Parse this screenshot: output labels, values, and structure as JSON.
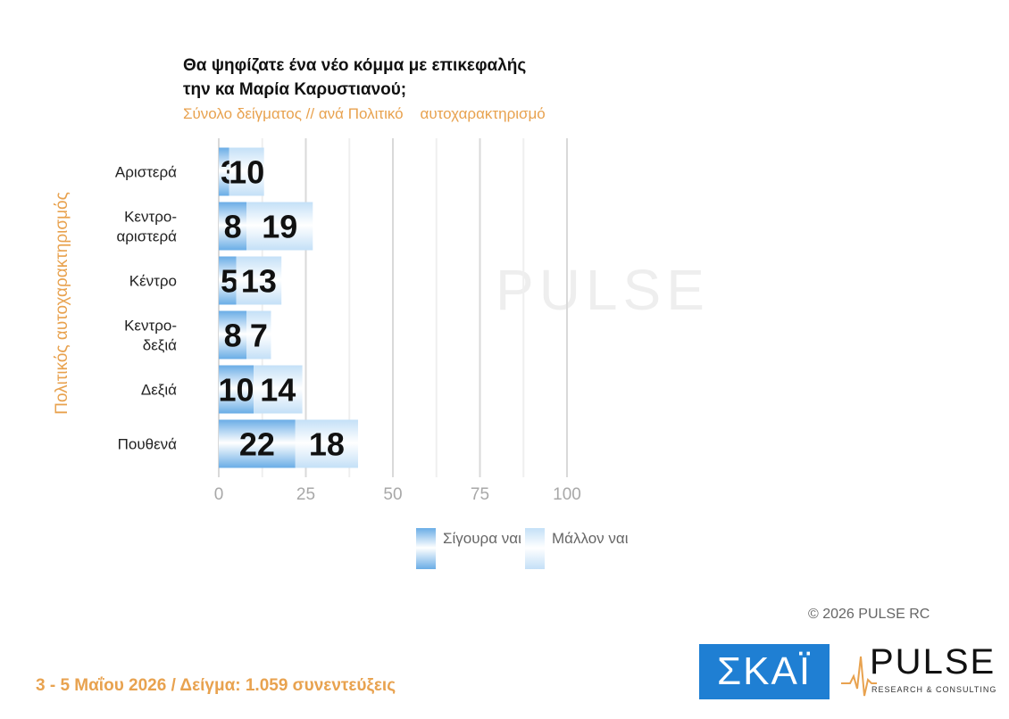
{
  "title_lines": [
    "Θα ψηφίζατε ένα νέο κόμμα με επικεφαλής",
    "την κα Μαρία Καρυστιανού;"
  ],
  "subtitle": "Σύνολο δείγματος // ανά Πολιτικό    αυτοχαρακτηρισμό",
  "chart_data": {
    "type": "bar",
    "orientation": "horizontal",
    "stacked": true,
    "ylabel": "Πολιτικός  αυτοχαρακτηρισμός",
    "categories": [
      [
        "Αριστερά"
      ],
      [
        "Κεντρο-",
        "αριστερά"
      ],
      [
        "Κέντρο"
      ],
      [
        "Κεντρο-",
        "δεξιά"
      ],
      [
        "Δεξιά"
      ],
      [
        "Πουθενά"
      ]
    ],
    "series": [
      {
        "name": "Σίγουρα ναι",
        "values": [
          3,
          8,
          5,
          8,
          10,
          22
        ],
        "color": "#6AADE6"
      },
      {
        "name": "Μάλλον ναι",
        "values": [
          10,
          19,
          13,
          7,
          14,
          18
        ],
        "color": "#C4E0F7"
      }
    ],
    "xlim": [
      0,
      100
    ],
    "xticks": [
      0,
      25,
      50,
      75,
      100
    ],
    "grid": true,
    "legend_position": "bottom"
  },
  "legend": [
    {
      "label": "Σίγουρα ναι",
      "color": "#6AADE6"
    },
    {
      "label": "Μάλλον ναι",
      "color": "#C4E0F7"
    }
  ],
  "copyright": "©  2026  PULSE RC",
  "footer_note": "3 - 5  Μαΐου 2026  /  Δείγμα:  1.059 συνεντεύξεις",
  "logos": {
    "skai_text": "ΣΚΑΪ",
    "pulse_text": "PULSE",
    "pulse_tagline": "RESEARCH & CONSULTING",
    "accent_color": "#E8A24F",
    "skai_color": "#1F7FD3"
  }
}
